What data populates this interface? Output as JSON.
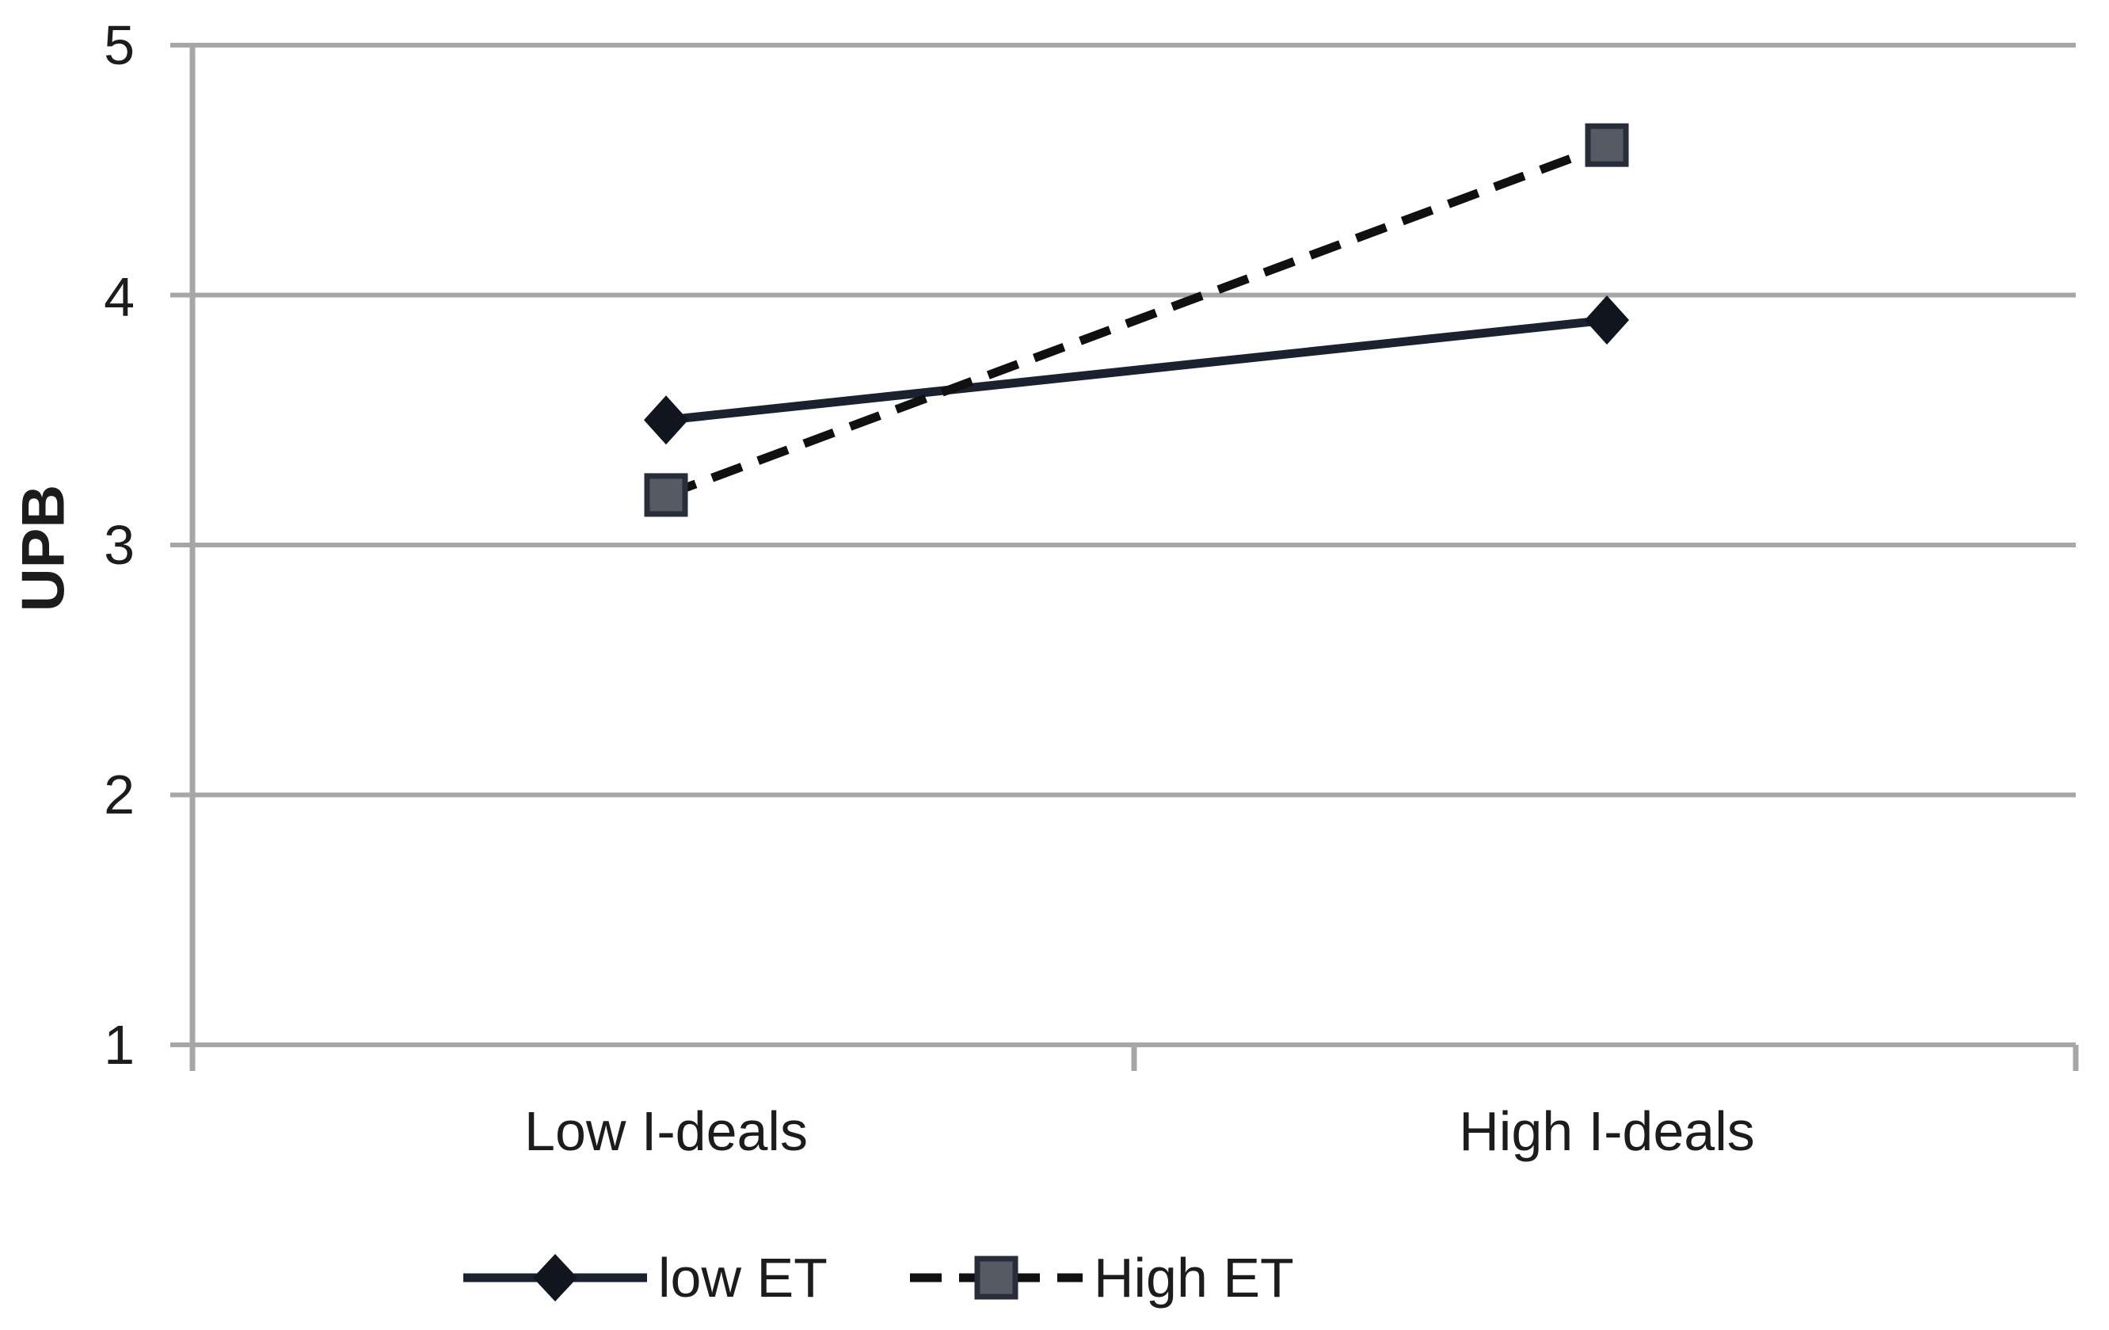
{
  "chart_data": {
    "type": "line",
    "title": "",
    "xlabel": "",
    "ylabel": "UPB",
    "categories": [
      "Low I-deals",
      "High I-deals"
    ],
    "series": [
      {
        "name": "low ET",
        "values": [
          3.5,
          3.9
        ],
        "line_style": "solid",
        "marker": "diamond",
        "line_color": "#1a2230",
        "marker_fill": "#10151e"
      },
      {
        "name": "High ET",
        "values": [
          3.2,
          4.6
        ],
        "line_style": "dashed",
        "marker": "square",
        "line_color": "#101010",
        "marker_fill": "#565b63",
        "marker_border": "#272d39"
      }
    ],
    "ylim": [
      1,
      5
    ],
    "y_ticks": [
      1,
      2,
      3,
      4,
      5
    ],
    "y_tick_labels": [
      "1",
      "2",
      "3",
      "4",
      "5"
    ],
    "grid": "horizontal",
    "gridline_color": "#a6a6a6",
    "text_color": "#1c1c1c",
    "background_color": "#ffffff",
    "legend_position": "bottom"
  }
}
